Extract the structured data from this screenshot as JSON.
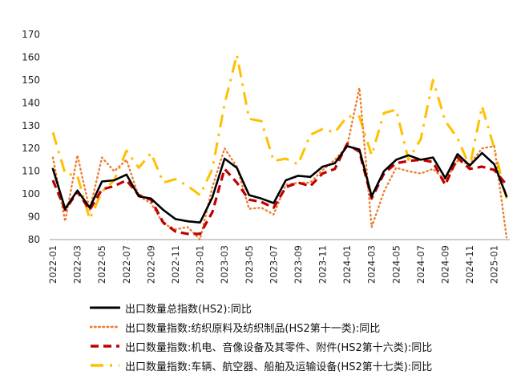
{
  "chart_data": {
    "type": "line",
    "title": "",
    "xlabel": "",
    "ylabel": "",
    "ylim": [
      80,
      170
    ],
    "yticks": [
      80,
      90,
      100,
      110,
      120,
      130,
      140,
      150,
      160,
      170
    ],
    "grid": false,
    "legend_position": "bottom",
    "x": [
      "2022-01",
      "2022-02",
      "2022-03",
      "2022-04",
      "2022-05",
      "2022-06",
      "2022-07",
      "2022-08",
      "2022-09",
      "2022-10",
      "2022-11",
      "2022-12",
      "2023-01",
      "2023-02",
      "2023-03",
      "2023-04",
      "2023-05",
      "2023-06",
      "2023-07",
      "2023-08",
      "2023-09",
      "2023-10",
      "2023-11",
      "2023-12",
      "2024-01",
      "2024-02",
      "2024-03",
      "2024-04",
      "2024-05",
      "2024-06",
      "2024-07",
      "2024-08",
      "2024-09",
      "2024-10",
      "2024-11",
      "2024-12",
      "2025-01",
      "2025-02"
    ],
    "xtick_labels": [
      "2022-01",
      "2022-03",
      "2022-05",
      "2022-07",
      "2022-09",
      "2022-11",
      "2023-01",
      "2023-03",
      "2023-05",
      "2023-07",
      "2023-09",
      "2023-11",
      "2024-01",
      "2024-03",
      "2024-05",
      "2024-07",
      "2024-09",
      "2024-11",
      "2025-01"
    ],
    "series": [
      {
        "name": "出口数量总指数(HS2):同比",
        "color": "#000000",
        "style": "solid",
        "values": [
          111,
          93.5,
          101.5,
          94,
          105.5,
          106,
          108.5,
          99,
          98,
          93,
          89,
          88,
          87.5,
          98.5,
          115.5,
          111.5,
          99.5,
          98,
          96,
          106,
          108,
          107.5,
          112,
          113.5,
          121,
          119.5,
          99,
          110,
          115,
          117,
          115,
          116,
          107,
          117.5,
          112.5,
          118,
          113,
          99
        ]
      },
      {
        "name": "出口数量指数:纺织原料及纺织制品(HS2第十一类):同比",
        "color": "#ED7D31",
        "style": "dotted",
        "values": [
          116,
          88,
          117,
          93,
          116,
          110,
          115,
          99,
          96,
          87,
          84.5,
          85.5,
          80,
          103,
          120,
          112,
          93.5,
          94,
          91,
          104,
          105,
          105,
          110.5,
          115,
          121,
          146.5,
          85.5,
          101,
          111.5,
          110,
          109,
          111,
          106,
          114.5,
          113,
          120,
          121,
          81
        ]
      },
      {
        "name": "出口数量指数:机电、音像设备及其零件、附件(HS2第十六类):同比",
        "color": "#C00000",
        "style": "dashed",
        "values": [
          106,
          93,
          101,
          93,
          102,
          103.5,
          106,
          99.5,
          97.5,
          87.5,
          83.5,
          82.5,
          82.5,
          92,
          111,
          105,
          97.5,
          96.5,
          94,
          103,
          105,
          103.5,
          109,
          111,
          122,
          118.5,
          98,
          109,
          113.5,
          114.5,
          115,
          114,
          104,
          116,
          111,
          112,
          110.5,
          104
        ]
      },
      {
        "name": "出口数量指数:车辆、航空器、船舶及运输设备(HS2第十七类):同比",
        "color": "#FFC000",
        "style": "dashdot",
        "values": [
          127,
          109,
          108,
          89,
          101,
          106,
          119,
          111.5,
          118,
          105,
          106.5,
          103.5,
          99.5,
          111,
          139.5,
          161,
          133,
          132,
          114.5,
          115.5,
          113,
          126,
          128.5,
          127,
          134,
          134,
          117,
          135.5,
          137,
          115,
          124,
          150,
          132,
          124.5,
          112,
          138.5,
          120,
          98
        ]
      }
    ]
  }
}
